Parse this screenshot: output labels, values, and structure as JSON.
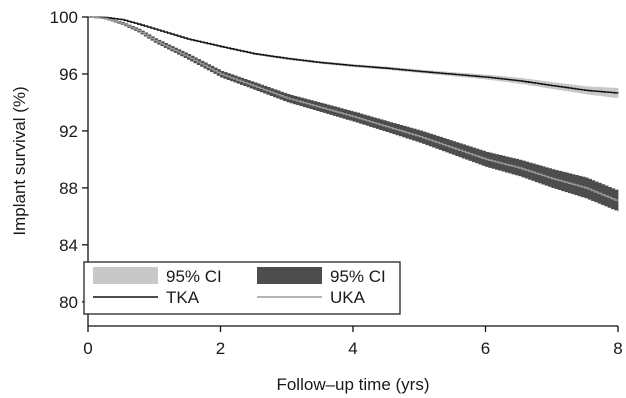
{
  "chart_data": {
    "type": "line",
    "title": "",
    "xlabel": "Follow–up time (yrs)",
    "ylabel": "Implant survival (%)",
    "xlim": [
      0,
      8
    ],
    "ylim": [
      78.3,
      100
    ],
    "x_ticks": [
      0,
      2,
      4,
      6,
      8
    ],
    "y_ticks": [
      80,
      84,
      88,
      92,
      96,
      100
    ],
    "grid": false,
    "legend_position": "bottom-left",
    "legend": {
      "ci_tka_label": "95% CI",
      "ci_uka_label": "95% CI",
      "tka_label": "TKA",
      "uka_label": "UKA"
    },
    "series": [
      {
        "name": "TKA",
        "color": "#111111",
        "ci_color": "#c8c8c8",
        "x": [
          0,
          0.25,
          0.5,
          0.75,
          1,
          1.5,
          2,
          2.5,
          3,
          3.5,
          4,
          4.5,
          5,
          5.5,
          6,
          6.5,
          7,
          7.5,
          8
        ],
        "y": [
          100,
          99.97,
          99.82,
          99.5,
          99.15,
          98.45,
          97.92,
          97.42,
          97.08,
          96.8,
          96.58,
          96.4,
          96.18,
          95.98,
          95.78,
          95.52,
          95.18,
          94.85,
          94.65
        ],
        "ci_lower": [
          100,
          99.96,
          99.8,
          99.47,
          99.12,
          98.41,
          97.88,
          97.37,
          97.02,
          96.74,
          96.51,
          96.32,
          96.09,
          95.87,
          95.64,
          95.34,
          94.97,
          94.6,
          94.32
        ],
        "ci_upper": [
          100,
          99.98,
          99.84,
          99.53,
          99.18,
          98.49,
          97.96,
          97.47,
          97.14,
          96.86,
          96.65,
          96.48,
          96.27,
          96.09,
          95.92,
          95.7,
          95.39,
          95.1,
          94.98
        ]
      },
      {
        "name": "UKA",
        "color": "#9a9a9a",
        "ci_color": "#4d4d4d",
        "x": [
          0,
          0.25,
          0.5,
          0.75,
          1,
          1.5,
          2,
          2.5,
          3,
          3.5,
          4,
          4.5,
          5,
          5.5,
          6,
          6.5,
          7,
          7.5,
          8
        ],
        "y": [
          100,
          99.9,
          99.55,
          99.05,
          98.35,
          97.2,
          95.98,
          95.15,
          94.3,
          93.65,
          93.0,
          92.3,
          91.6,
          90.8,
          90.0,
          89.4,
          88.65,
          88.0,
          87.05
        ],
        "ci_lower": [
          100,
          99.86,
          99.48,
          98.95,
          98.22,
          97.03,
          95.78,
          94.92,
          94.04,
          93.36,
          92.68,
          91.95,
          91.2,
          90.35,
          89.5,
          88.85,
          88.02,
          87.3,
          86.35
        ],
        "ci_upper": [
          100,
          99.94,
          99.62,
          99.15,
          98.48,
          97.37,
          96.18,
          95.38,
          94.56,
          93.94,
          93.32,
          92.65,
          92.0,
          91.25,
          90.5,
          89.95,
          89.28,
          88.7,
          87.75
        ]
      }
    ]
  }
}
